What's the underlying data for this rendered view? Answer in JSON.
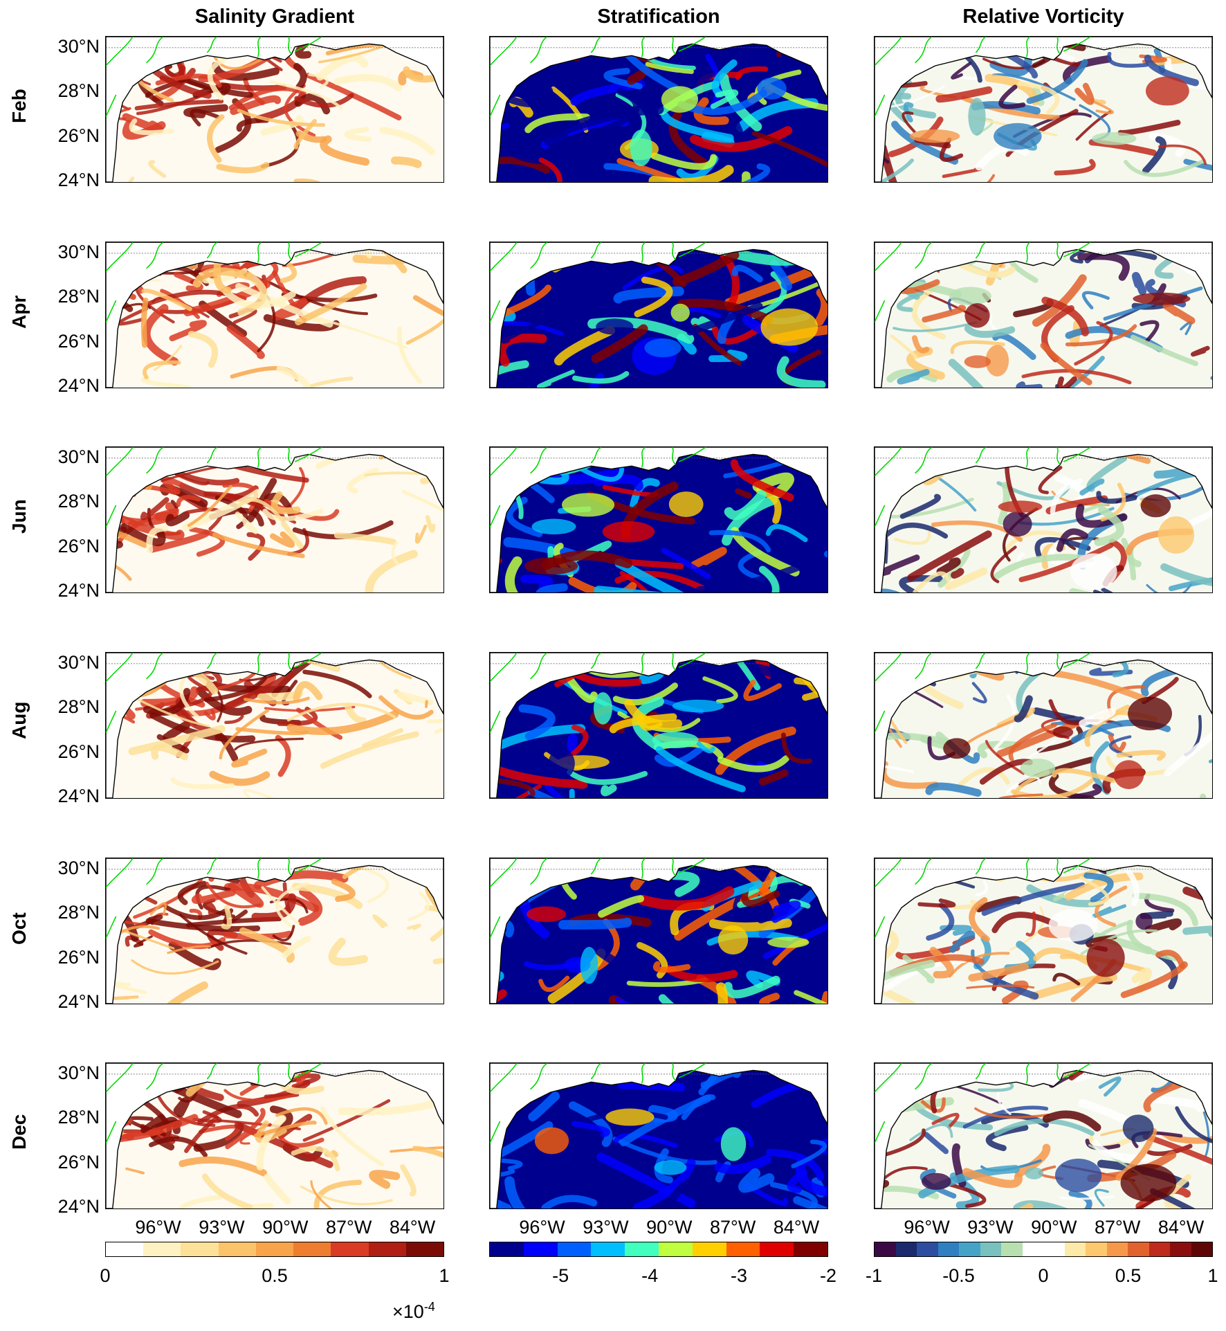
{
  "columns": [
    {
      "title": "Salinity Gradient",
      "colormap": [
        "#ffffff",
        "#fff2c2",
        "#fde199",
        "#fbc36a",
        "#f8a44a",
        "#ef7d2f",
        "#d93b24",
        "#b01e14",
        "#7a0c05"
      ],
      "colorbar": {
        "ticks": [
          "0",
          "0.5",
          "1"
        ],
        "tick_values": [
          0,
          0.5,
          1
        ],
        "range": [
          0,
          1
        ],
        "multiplier": "×10",
        "multiplier_exp": "-4"
      },
      "background": "#fffaf0"
    },
    {
      "title": "Stratification",
      "colormap": [
        "#00008f",
        "#0000ff",
        "#0060ff",
        "#00bfff",
        "#40ffbf",
        "#bfff40",
        "#ffcf00",
        "#ff6000",
        "#e00000",
        "#800000"
      ],
      "colorbar": {
        "ticks": [
          "-5",
          "-4",
          "-3",
          "-2"
        ],
        "tick_values": [
          -5,
          -4,
          -3,
          -2
        ],
        "range": [
          -5.8,
          -2
        ]
      },
      "background": "#00008f"
    },
    {
      "title": "Relative Vorticity",
      "colormap": [
        "#3b0a45",
        "#1a2a6c",
        "#2c4da0",
        "#2f7fc1",
        "#45a3c8",
        "#79c1be",
        "#b7dfb0",
        "#ffffff",
        "#ffffff",
        "#fde9a8",
        "#fdc86e",
        "#f6984a",
        "#e2622d",
        "#bf2a1c",
        "#8a0e0e",
        "#5e0606"
      ],
      "colorbar": {
        "ticks": [
          "-1",
          "-0.5",
          "0",
          "0.5",
          "1"
        ],
        "tick_values": [
          -1,
          -0.5,
          0,
          0.5,
          1
        ],
        "range": [
          -1,
          1
        ]
      },
      "background": "#f6f8ee"
    }
  ],
  "rows": [
    "Feb",
    "Apr",
    "Jun",
    "Aug",
    "Oct",
    "Dec"
  ],
  "lat_labels": [
    "30°N",
    "28°N",
    "26°N",
    "24°N"
  ],
  "lat_values": [
    30,
    28,
    26,
    24
  ],
  "lon_labels": [
    "96°W",
    "93°W",
    "90°W",
    "87°W",
    "84°W"
  ],
  "lon_values": [
    -96,
    -93,
    -90,
    -87,
    -84
  ],
  "map_extent": {
    "lon": [
      -98.5,
      -82.5
    ],
    "lat": [
      23.9,
      30.5
    ]
  },
  "coastline_color": "#000000",
  "rivers_color": "#00dd00"
}
